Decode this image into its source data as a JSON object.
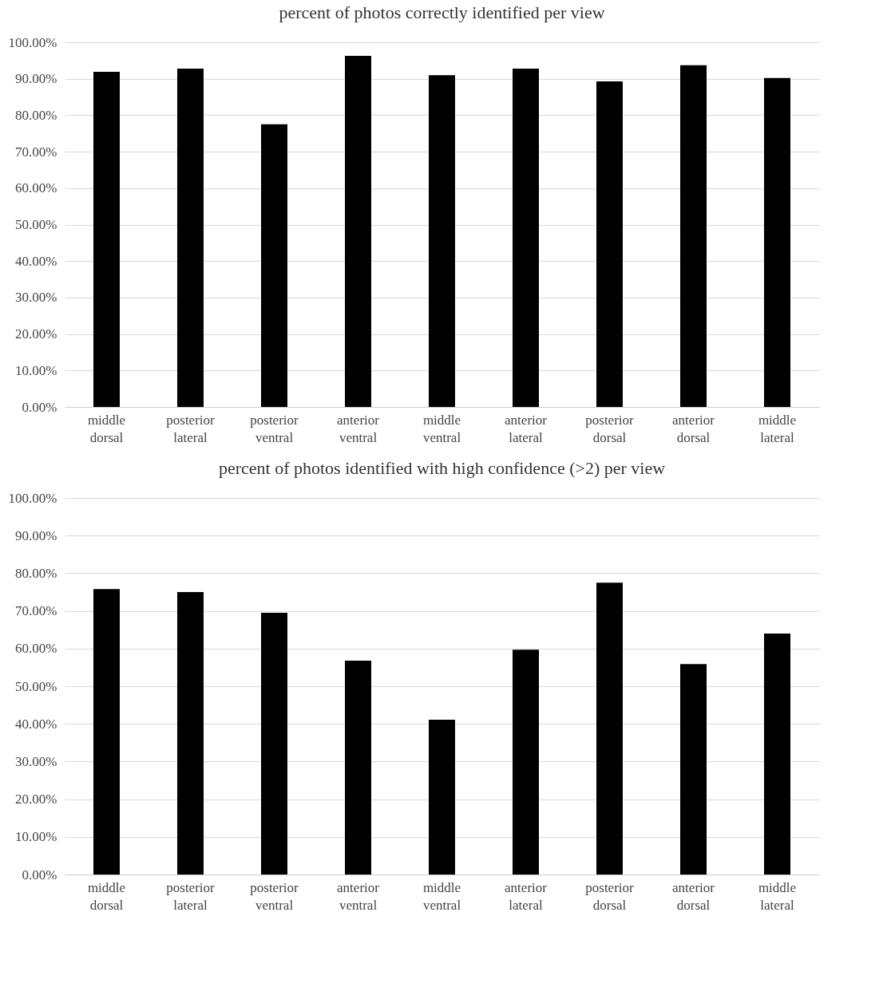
{
  "chart_data": [
    {
      "type": "bar",
      "title": "percent of photos correctly identified per view",
      "categories": [
        "middle dorsal",
        "posterior lateral",
        "posterior ventral",
        "anterior ventral",
        "middle ventral",
        "anterior lateral",
        "posterior dorsal",
        "anterior dorsal",
        "middle lateral"
      ],
      "series": [
        {
          "color": "#000000",
          "values": [
            91.9,
            92.8,
            77.5,
            96.3,
            91.0,
            92.8,
            89.3,
            93.7,
            90.2
          ]
        }
      ],
      "ylim": [
        0,
        100
      ],
      "yticks": [
        {
          "value": 0,
          "label": "0.00%"
        },
        {
          "value": 10,
          "label": "10.00%"
        },
        {
          "value": 20,
          "label": "20.00%"
        },
        {
          "value": 30,
          "label": "30.00%"
        },
        {
          "value": 40,
          "label": "40.00%"
        },
        {
          "value": 50,
          "label": "50.00%"
        },
        {
          "value": 60,
          "label": "60.00%"
        },
        {
          "value": 70,
          "label": "70.00%"
        },
        {
          "value": 80,
          "label": "80.00%"
        },
        {
          "value": 90,
          "label": "90.00%"
        },
        {
          "value": 100,
          "label": "100.00%"
        }
      ],
      "grid": "y"
    },
    {
      "type": "bar",
      "title": "percent of photos identified with high confidence (>2) per view",
      "categories": [
        "middle dorsal",
        "posterior lateral",
        "posterior ventral",
        "anterior ventral",
        "middle ventral",
        "anterior lateral",
        "posterior dorsal",
        "anterior dorsal",
        "middle lateral"
      ],
      "series": [
        {
          "color": "#000000",
          "values": [
            75.8,
            75.0,
            69.5,
            56.8,
            41.1,
            59.7,
            77.5,
            55.9,
            64.0
          ]
        }
      ],
      "ylim": [
        0,
        100
      ],
      "yticks": [
        {
          "value": 0,
          "label": "0.00%"
        },
        {
          "value": 10,
          "label": "10.00%"
        },
        {
          "value": 20,
          "label": "20.00%"
        },
        {
          "value": 30,
          "label": "30.00%"
        },
        {
          "value": 40,
          "label": "40.00%"
        },
        {
          "value": 50,
          "label": "50.00%"
        },
        {
          "value": 60,
          "label": "60.00%"
        },
        {
          "value": 70,
          "label": "70.00%"
        },
        {
          "value": 80,
          "label": "80.00%"
        },
        {
          "value": 90,
          "label": "90.00%"
        },
        {
          "value": 100,
          "label": "100.00%"
        }
      ],
      "grid": "y"
    }
  ]
}
